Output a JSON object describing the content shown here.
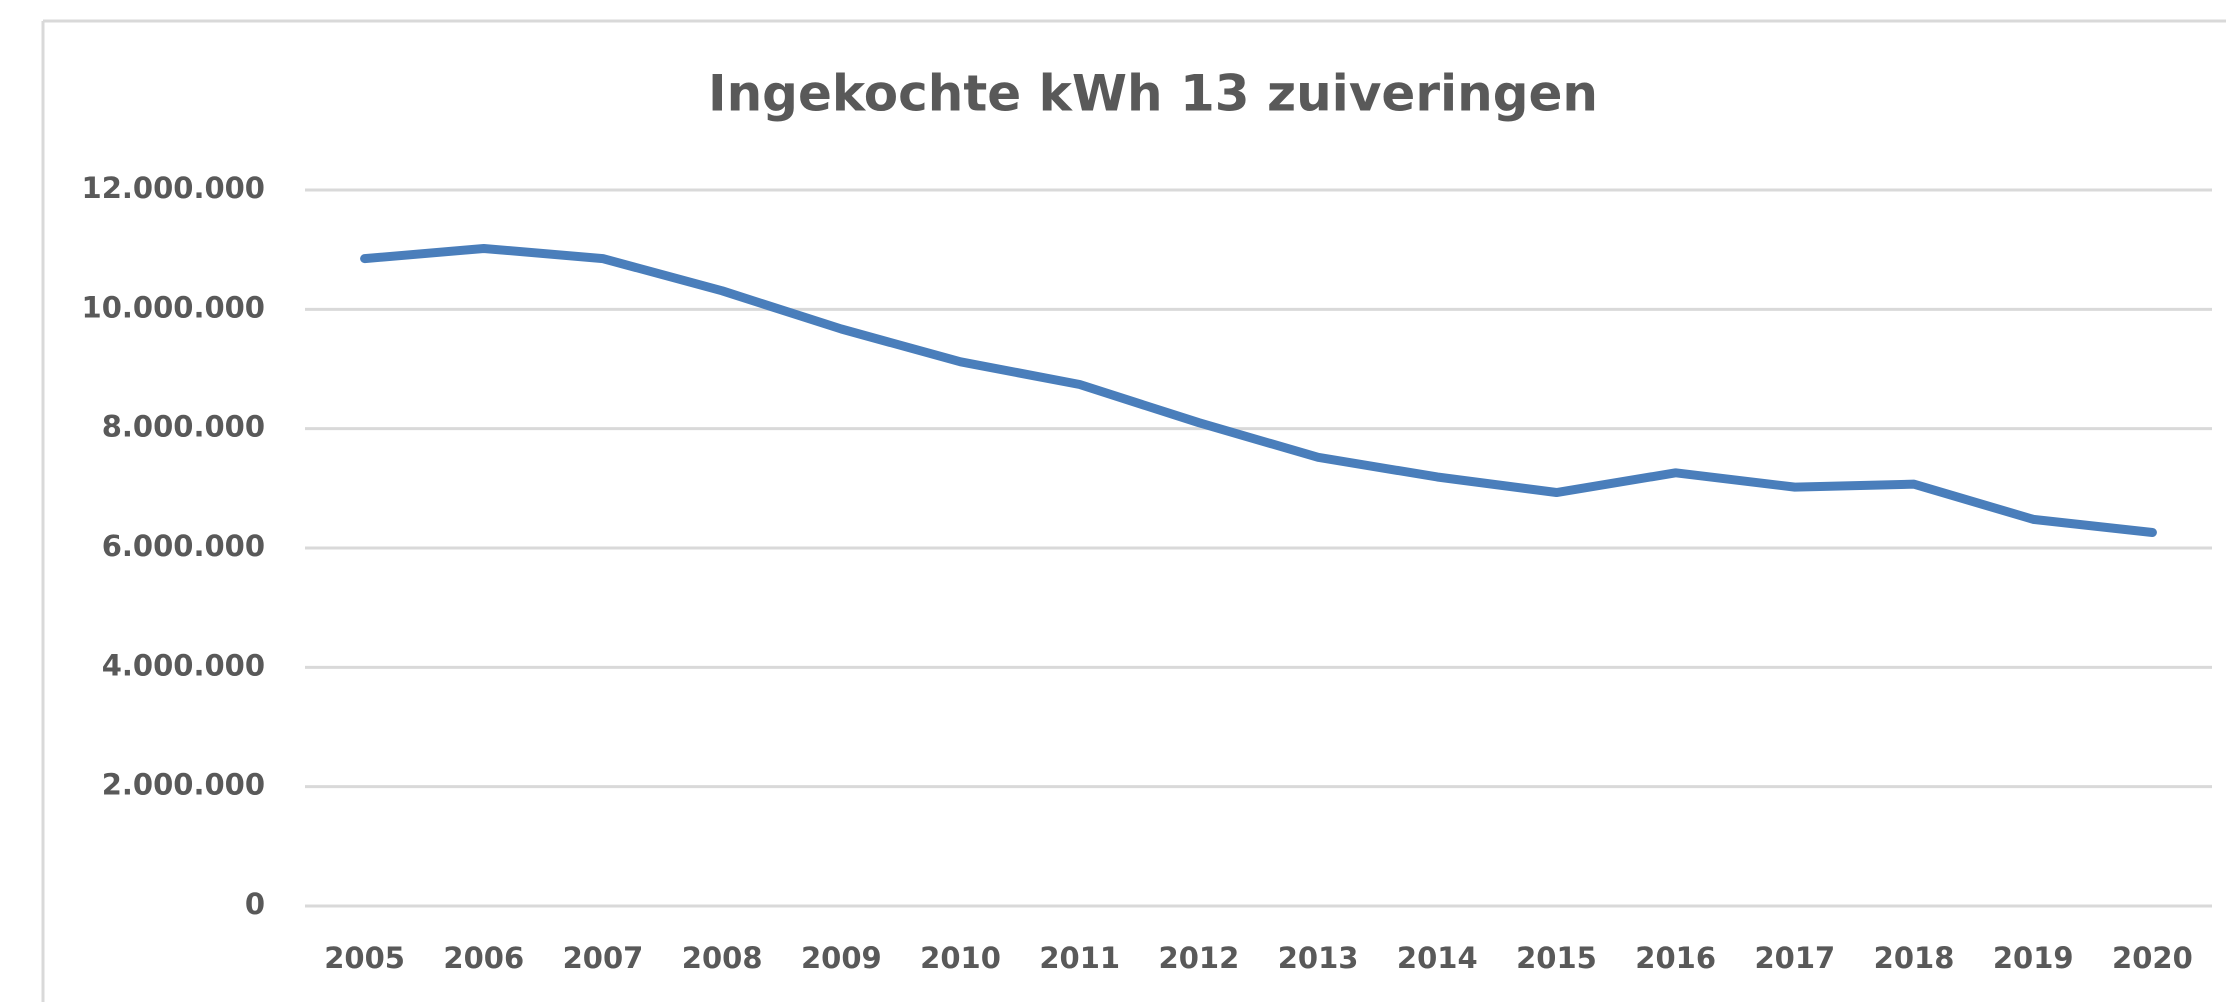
{
  "chart_data": {
    "type": "line",
    "title": "Ingekochte kWh 13 zuiveringen",
    "categories": [
      "2005",
      "2006",
      "2007",
      "2008",
      "2009",
      "2010",
      "2011",
      "2012",
      "2013",
      "2014",
      "2015",
      "2016",
      "2017",
      "2018",
      "2019",
      "2020"
    ],
    "series": [
      {
        "name": "Ingekochte kWh",
        "color": "#4a7ebb",
        "values": [
          10850000,
          11020000,
          10850000,
          10310000,
          9670000,
          9120000,
          8740000,
          8100000,
          7520000,
          7190000,
          6930000,
          7260000,
          7020000,
          7070000,
          6480000,
          6260000
        ]
      }
    ],
    "ylim": [
      0,
      12000000
    ],
    "yticks": [
      0,
      {
        "value": 2000000,
        "label": "2.000.000"
      },
      {
        "value": 4000000,
        "label": "4.000.000"
      },
      {
        "value": 6000000,
        "label": "6.000.000"
      },
      {
        "value": 8000000,
        "label": "8.000.000"
      },
      {
        "value": 10000000,
        "label": "10.000.000"
      },
      {
        "value": 12000000,
        "label": "12.000.000"
      }
    ],
    "grid": true
  }
}
